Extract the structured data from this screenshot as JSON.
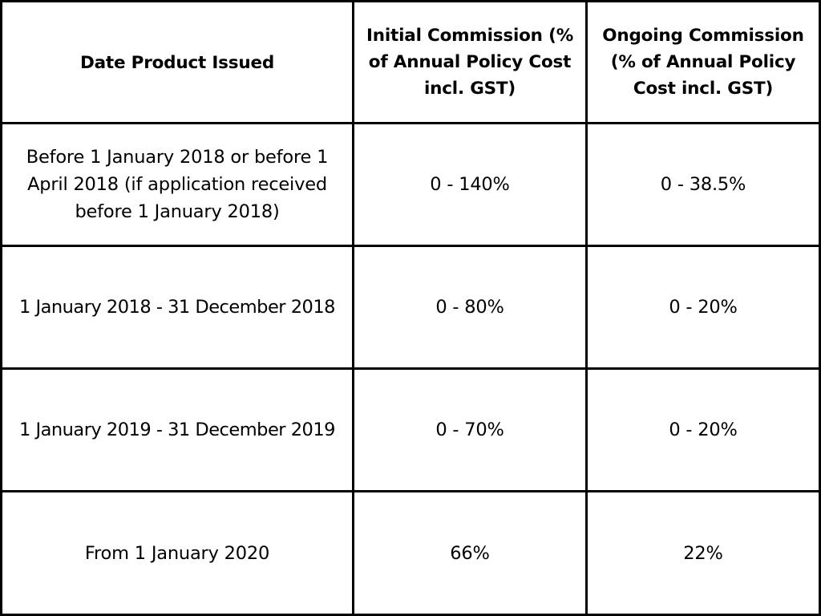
{
  "table": {
    "headers": [
      "Date Product Issued",
      "Initial Commission (% of Annual Policy Cost incl. GST)",
      "Ongoing Commission (% of Annual Policy Cost incl. GST)"
    ],
    "rows": [
      [
        "Before 1 January 2018 or before 1 April 2018 (if application received before 1 January 2018)",
        "0 - 140%",
        "0 - 38.5%"
      ],
      [
        "1 January 2018 - 31 December 2018",
        "0 - 80%",
        "0 - 20%"
      ],
      [
        "1 January 2019 - 31 December 2019",
        "0 - 70%",
        "0 - 20%"
      ],
      [
        "From 1 January 2020",
        "66%",
        "22%"
      ]
    ]
  }
}
